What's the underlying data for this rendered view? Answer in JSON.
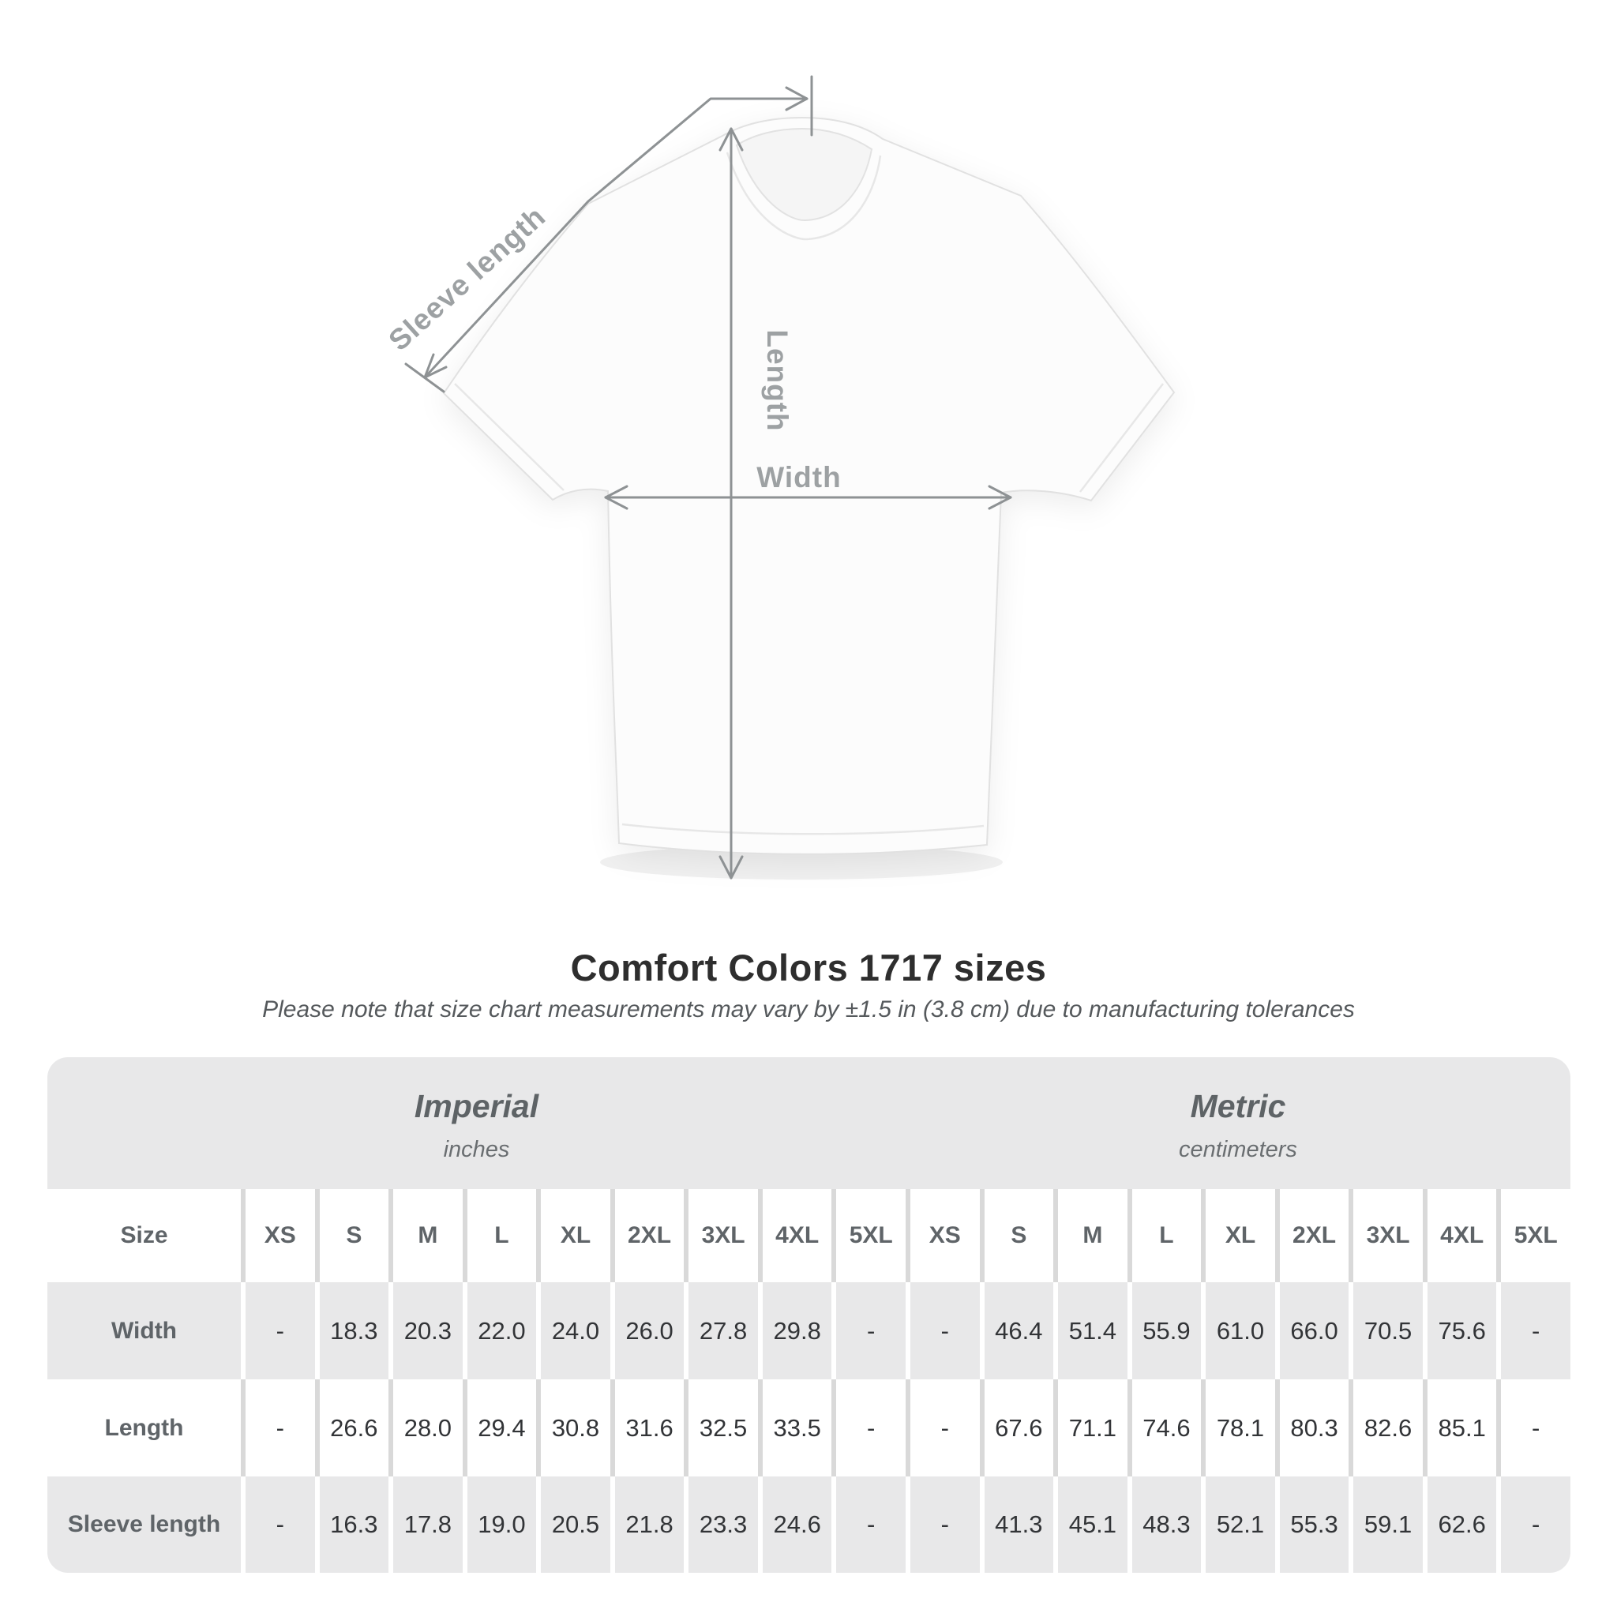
{
  "shirt_diagram": {
    "labels": {
      "sleeve_length": "Sleeve length",
      "length": "Length",
      "width": "Width"
    }
  },
  "heading": {
    "title": "Comfort Colors 1717 sizes",
    "subtitle": "Please note that size chart measurements may vary by ±1.5 in (3.8 cm) due to manufacturing tolerances"
  },
  "size_table": {
    "groups": [
      {
        "label": "Imperial",
        "unit": "inches"
      },
      {
        "label": "Metric",
        "unit": "centimeters"
      }
    ],
    "size_column_header": "Size",
    "sizes": [
      "XS",
      "S",
      "M",
      "L",
      "XL",
      "2XL",
      "3XL",
      "4XL",
      "5XL"
    ],
    "rows": [
      {
        "label": "Width",
        "imperial": [
          "-",
          "18.3",
          "20.3",
          "22.0",
          "24.0",
          "26.0",
          "27.8",
          "29.8",
          "-"
        ],
        "metric": [
          "-",
          "46.4",
          "51.4",
          "55.9",
          "61.0",
          "66.0",
          "70.5",
          "75.6",
          "-"
        ]
      },
      {
        "label": "Length",
        "imperial": [
          "-",
          "26.6",
          "28.0",
          "29.4",
          "30.8",
          "31.6",
          "32.5",
          "33.5",
          "-"
        ],
        "metric": [
          "-",
          "67.6",
          "71.1",
          "74.6",
          "78.1",
          "80.3",
          "82.6",
          "85.1",
          "-"
        ]
      },
      {
        "label": "Sleeve length",
        "imperial": [
          "-",
          "16.3",
          "17.8",
          "19.0",
          "20.5",
          "21.8",
          "23.3",
          "24.6",
          "-"
        ],
        "metric": [
          "-",
          "41.3",
          "45.1",
          "48.3",
          "52.1",
          "55.3",
          "59.1",
          "62.6",
          "-"
        ]
      }
    ]
  },
  "colors": {
    "band_gray": "#e8e8e9",
    "row_gray": "#e8e8e9",
    "separator_gray": "#d9d9d9",
    "header_text": "#5f6468",
    "value_text": "#323437",
    "title_text": "#2e2e2e",
    "subtitle_text": "#55595c",
    "measure_line": "#8e9294",
    "measure_label": "#9da1a3"
  }
}
